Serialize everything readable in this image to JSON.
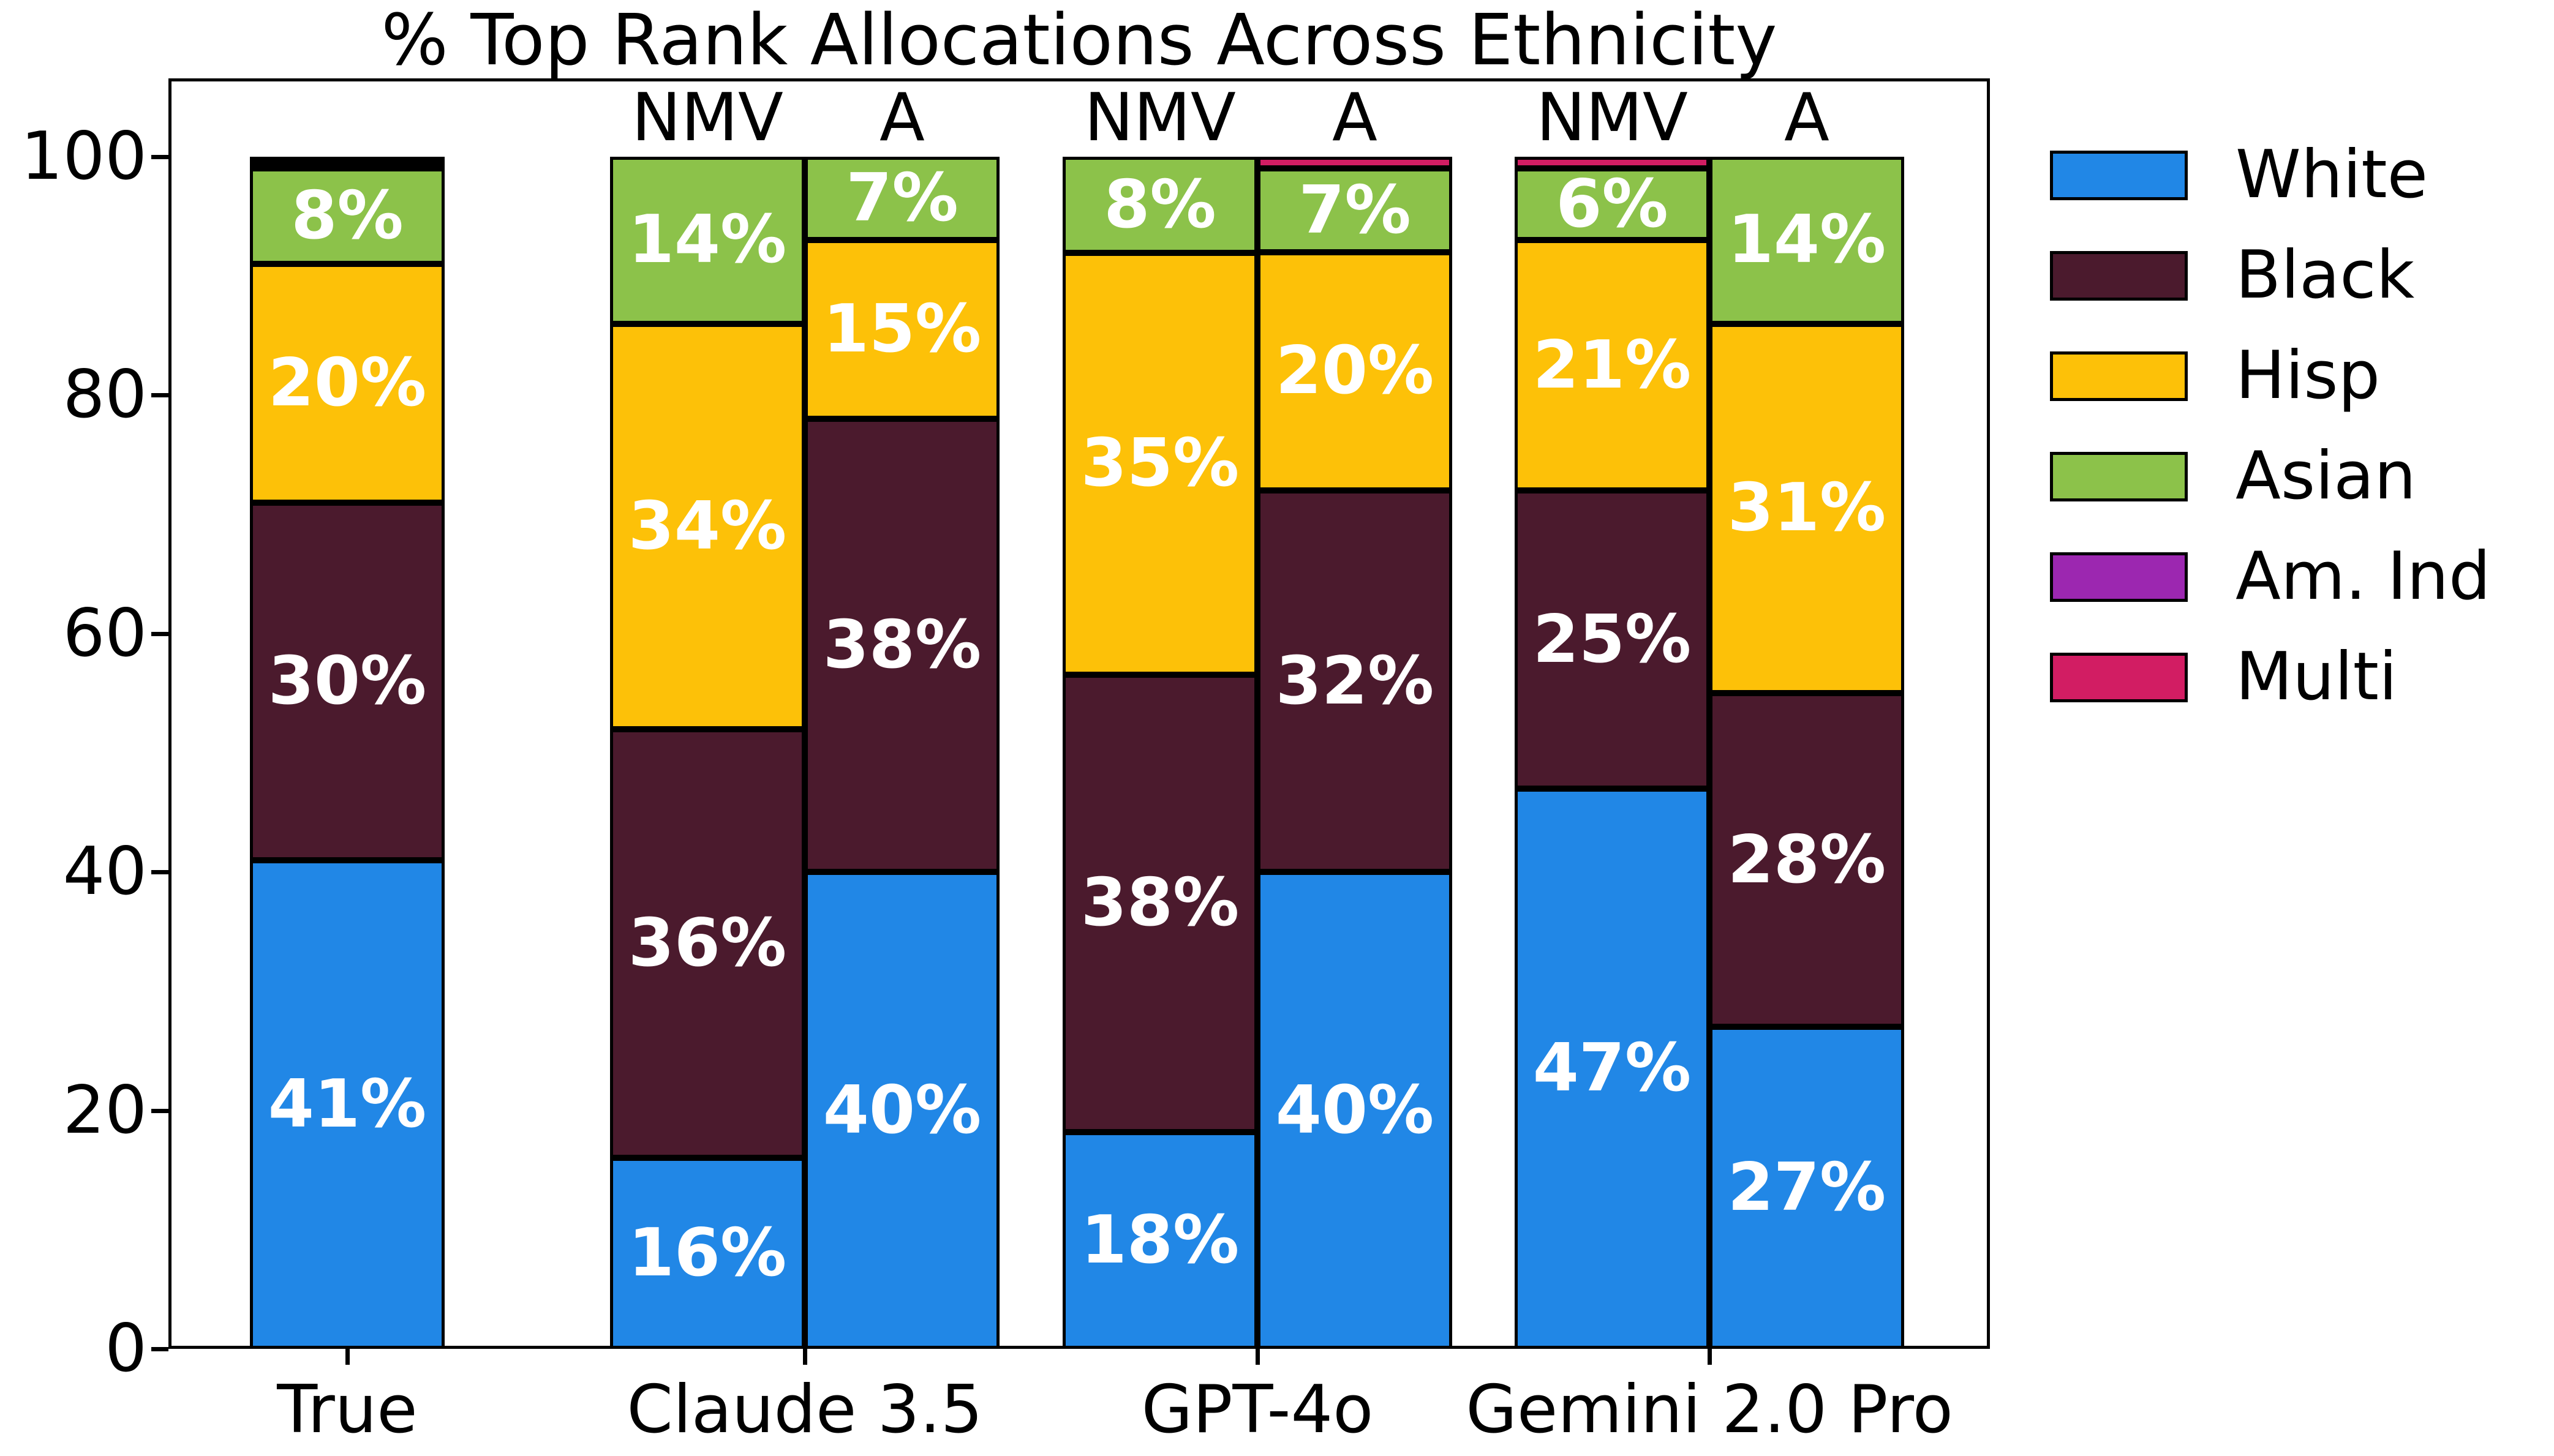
{
  "chart_data": {
    "type": "bar",
    "stacked": true,
    "title": "% Top Rank Allocations Across Ethnicity",
    "categories": [
      "True",
      "Claude 3.5",
      "GPT-4o",
      "Gemini 2.0 Pro"
    ],
    "bar_variant_labels": [
      "NMV",
      "A"
    ],
    "ylabel": "",
    "xlabel": "",
    "ylim": [
      0,
      106.6
    ],
    "yticks": [
      "0",
      "20",
      "40",
      "60",
      "80",
      "100"
    ],
    "grid": false,
    "legend_position": "right",
    "legend": [
      {
        "label": "White",
        "color": "#2187E6"
      },
      {
        "label": "Black",
        "color": "#4B1A2D"
      },
      {
        "label": "Hisp",
        "color": "#FDC108"
      },
      {
        "label": "Asian",
        "color": "#8CC24A"
      },
      {
        "label": "Am. Ind",
        "color": "#9C27B0"
      },
      {
        "label": "Multi",
        "color": "#D21D63"
      }
    ],
    "bars": [
      {
        "category": "True",
        "variant": null,
        "segments": [
          {
            "name": "White",
            "value": 41,
            "label": "41%"
          },
          {
            "name": "Black",
            "value": 30,
            "label": "30%"
          },
          {
            "name": "Hisp",
            "value": 20,
            "label": "20%"
          },
          {
            "name": "Asian",
            "value": 8,
            "label": "8%"
          },
          {
            "name": "Am. Ind",
            "value": 0.5,
            "label": ""
          },
          {
            "name": "Multi",
            "value": 0.5,
            "label": ""
          }
        ]
      },
      {
        "category": "Claude 3.5",
        "variant": "NMV",
        "segments": [
          {
            "name": "White",
            "value": 16,
            "label": "16%"
          },
          {
            "name": "Black",
            "value": 36,
            "label": "36%"
          },
          {
            "name": "Hisp",
            "value": 34,
            "label": "34%"
          },
          {
            "name": "Asian",
            "value": 14,
            "label": "14%"
          }
        ]
      },
      {
        "category": "Claude 3.5",
        "variant": "A",
        "segments": [
          {
            "name": "White",
            "value": 40,
            "label": "40%"
          },
          {
            "name": "Black",
            "value": 38,
            "label": "38%"
          },
          {
            "name": "Hisp",
            "value": 15,
            "label": "15%"
          },
          {
            "name": "Asian",
            "value": 7,
            "label": "7%"
          }
        ]
      },
      {
        "category": "GPT-4o",
        "variant": "NMV",
        "segments": [
          {
            "name": "White",
            "value": 18,
            "label": "18%"
          },
          {
            "name": "Black",
            "value": 38,
            "label": "38%"
          },
          {
            "name": "Hisp",
            "value": 35,
            "label": "35%"
          },
          {
            "name": "Asian",
            "value": 8,
            "label": "8%"
          }
        ]
      },
      {
        "category": "GPT-4o",
        "variant": "A",
        "segments": [
          {
            "name": "White",
            "value": 40,
            "label": "40%"
          },
          {
            "name": "Black",
            "value": 32,
            "label": "32%"
          },
          {
            "name": "Hisp",
            "value": 20,
            "label": "20%"
          },
          {
            "name": "Asian",
            "value": 7,
            "label": "7%"
          },
          {
            "name": "Multi",
            "value": 1,
            "label": ""
          }
        ]
      },
      {
        "category": "Gemini 2.0 Pro",
        "variant": "NMV",
        "segments": [
          {
            "name": "White",
            "value": 47,
            "label": "47%"
          },
          {
            "name": "Black",
            "value": 25,
            "label": "25%"
          },
          {
            "name": "Hisp",
            "value": 21,
            "label": "21%"
          },
          {
            "name": "Asian",
            "value": 6,
            "label": "6%"
          },
          {
            "name": "Multi",
            "value": 1,
            "label": ""
          }
        ]
      },
      {
        "category": "Gemini 2.0 Pro",
        "variant": "A",
        "segments": [
          {
            "name": "White",
            "value": 27,
            "label": "27%"
          },
          {
            "name": "Black",
            "value": 28,
            "label": "28%"
          },
          {
            "name": "Hisp",
            "value": 31,
            "label": "31%"
          },
          {
            "name": "Asian",
            "value": 14,
            "label": "14%"
          }
        ]
      }
    ]
  }
}
